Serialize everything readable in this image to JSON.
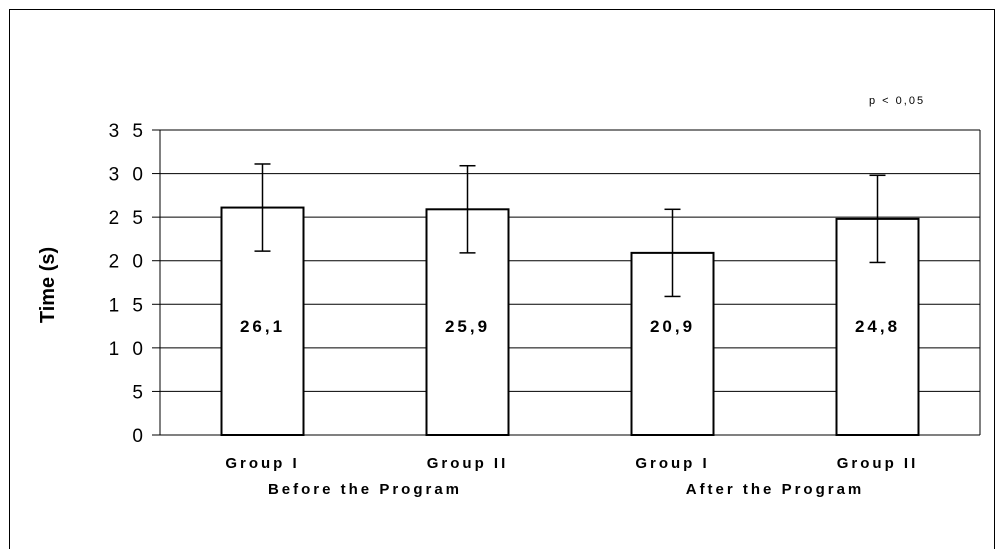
{
  "chart_data": {
    "type": "bar",
    "ylabel": "Time (s)",
    "xlabel": "",
    "title": "",
    "ylim": [
      0,
      35
    ],
    "yticks": [
      0,
      5,
      10,
      15,
      20,
      25,
      30,
      35
    ],
    "grid": true,
    "annotation": "p < 0,05",
    "categories": [
      "Group I",
      "Group II",
      "Group I",
      "Group II"
    ],
    "groups": [
      "Before the Program",
      "After the Program"
    ],
    "values": [
      26.1,
      25.9,
      20.9,
      24.8
    ],
    "value_labels": [
      "26,1",
      "25,9",
      "20,9",
      "24,8"
    ],
    "error": [
      5,
      5,
      5,
      5
    ],
    "bar_color": "#ffffff",
    "edge_color": "#000000"
  }
}
